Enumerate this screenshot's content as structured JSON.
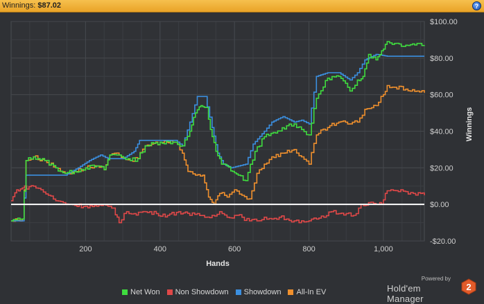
{
  "window": {
    "title_label": "Winnings:",
    "title_value": "$87.02",
    "help_icon": "question-icon"
  },
  "branding": {
    "powered_by": "Powered by",
    "name": "Hold'em Manager",
    "logo_number": "2"
  },
  "colors": {
    "background": "#2f3135",
    "grid": "#45484d",
    "zero_line": "#ffffff",
    "net_won": "#3fdc3f",
    "non_showdown": "#e04848",
    "showdown": "#3b8fe0",
    "all_in_ev": "#f0902d"
  },
  "chart_data": {
    "type": "line",
    "title": "",
    "xlabel": "Hands",
    "ylabel": "Winnings",
    "xlim": [
      0,
      1110
    ],
    "ylim": [
      -20,
      100
    ],
    "x_ticks": [
      200,
      400,
      600,
      800,
      1000
    ],
    "x_tick_labels": [
      "200",
      "400",
      "600",
      "800",
      "1,000"
    ],
    "y_ticks": [
      -20,
      0,
      20,
      40,
      60,
      80,
      100
    ],
    "y_tick_labels": [
      "-$20.00",
      "$0.00",
      "$20.00",
      "$40.00",
      "$60.00",
      "$80.00",
      "$100.00"
    ],
    "grid": true,
    "legend_position": "bottom",
    "series": [
      {
        "name": "Net Won",
        "points": [
          [
            0,
            -9
          ],
          [
            30,
            -8
          ],
          [
            40,
            24
          ],
          [
            60,
            26
          ],
          [
            90,
            24
          ],
          [
            120,
            20
          ],
          [
            145,
            17
          ],
          [
            170,
            18
          ],
          [
            200,
            20
          ],
          [
            230,
            21
          ],
          [
            250,
            19
          ],
          [
            265,
            27
          ],
          [
            290,
            27
          ],
          [
            320,
            24
          ],
          [
            340,
            25
          ],
          [
            360,
            32
          ],
          [
            400,
            34
          ],
          [
            440,
            34
          ],
          [
            460,
            32
          ],
          [
            480,
            40
          ],
          [
            495,
            50
          ],
          [
            510,
            54
          ],
          [
            525,
            53
          ],
          [
            535,
            41
          ],
          [
            550,
            29
          ],
          [
            565,
            22
          ],
          [
            580,
            21
          ],
          [
            595,
            18
          ],
          [
            610,
            16
          ],
          [
            630,
            13
          ],
          [
            655,
            29
          ],
          [
            680,
            37
          ],
          [
            710,
            39
          ],
          [
            740,
            43
          ],
          [
            760,
            44
          ],
          [
            780,
            41
          ],
          [
            800,
            38
          ],
          [
            820,
            58
          ],
          [
            850,
            69
          ],
          [
            880,
            70
          ],
          [
            910,
            62
          ],
          [
            930,
            68
          ],
          [
            945,
            70
          ],
          [
            960,
            82
          ],
          [
            980,
            79
          ],
          [
            995,
            84
          ],
          [
            1010,
            89
          ],
          [
            1030,
            88
          ],
          [
            1060,
            87
          ],
          [
            1090,
            88
          ],
          [
            1110,
            87.02
          ]
        ]
      },
      {
        "name": "Non Showdown",
        "points": [
          [
            0,
            2
          ],
          [
            15,
            8
          ],
          [
            30,
            9
          ],
          [
            60,
            10
          ],
          [
            80,
            8
          ],
          [
            100,
            5
          ],
          [
            120,
            2
          ],
          [
            140,
            1
          ],
          [
            160,
            0
          ],
          [
            200,
            -1
          ],
          [
            230,
            -1
          ],
          [
            260,
            -1
          ],
          [
            275,
            -2
          ],
          [
            290,
            -10
          ],
          [
            310,
            -4
          ],
          [
            330,
            -5
          ],
          [
            360,
            -4
          ],
          [
            390,
            -5
          ],
          [
            420,
            -6
          ],
          [
            450,
            -4
          ],
          [
            480,
            -6
          ],
          [
            500,
            -5
          ],
          [
            520,
            -7
          ],
          [
            540,
            -6
          ],
          [
            560,
            -4
          ],
          [
            580,
            -7
          ],
          [
            600,
            -6
          ],
          [
            620,
            -7
          ],
          [
            640,
            -9
          ],
          [
            660,
            -9
          ],
          [
            680,
            -7
          ],
          [
            700,
            -8
          ],
          [
            720,
            -7
          ],
          [
            740,
            -8
          ],
          [
            760,
            -9
          ],
          [
            780,
            -9
          ],
          [
            800,
            -9
          ],
          [
            820,
            -8
          ],
          [
            840,
            -7
          ],
          [
            860,
            -4
          ],
          [
            880,
            -5
          ],
          [
            900,
            -5
          ],
          [
            920,
            -6
          ],
          [
            940,
            0
          ],
          [
            960,
            1
          ],
          [
            980,
            0
          ],
          [
            995,
            0
          ],
          [
            1005,
            6
          ],
          [
            1020,
            8
          ],
          [
            1040,
            7
          ],
          [
            1060,
            7
          ],
          [
            1080,
            6
          ],
          [
            1100,
            6
          ],
          [
            1110,
            5
          ]
        ]
      },
      {
        "name": "Showdown",
        "points": [
          [
            0,
            -9
          ],
          [
            30,
            -9
          ],
          [
            40,
            16
          ],
          [
            80,
            16
          ],
          [
            120,
            16
          ],
          [
            145,
            16
          ],
          [
            180,
            20
          ],
          [
            210,
            24
          ],
          [
            240,
            27
          ],
          [
            260,
            25
          ],
          [
            280,
            25
          ],
          [
            300,
            25
          ],
          [
            330,
            29
          ],
          [
            345,
            35
          ],
          [
            375,
            35
          ],
          [
            405,
            35
          ],
          [
            440,
            35
          ],
          [
            460,
            32
          ],
          [
            480,
            45
          ],
          [
            500,
            59
          ],
          [
            520,
            59
          ],
          [
            540,
            42
          ],
          [
            555,
            28
          ],
          [
            570,
            22
          ],
          [
            590,
            20
          ],
          [
            610,
            21
          ],
          [
            630,
            22
          ],
          [
            650,
            33
          ],
          [
            680,
            40
          ],
          [
            700,
            45
          ],
          [
            730,
            48
          ],
          [
            760,
            45
          ],
          [
            780,
            46
          ],
          [
            800,
            44
          ],
          [
            820,
            70
          ],
          [
            850,
            72
          ],
          [
            880,
            72
          ],
          [
            910,
            68
          ],
          [
            930,
            72
          ],
          [
            950,
            79
          ],
          [
            980,
            82
          ],
          [
            1010,
            81
          ],
          [
            1040,
            81
          ],
          [
            1080,
            81
          ],
          [
            1110,
            81
          ]
        ]
      },
      {
        "name": "All-In EV",
        "points": [
          [
            0,
            -9
          ],
          [
            30,
            -8
          ],
          [
            40,
            24
          ],
          [
            60,
            26
          ],
          [
            90,
            24
          ],
          [
            120,
            20
          ],
          [
            145,
            17
          ],
          [
            170,
            18
          ],
          [
            200,
            20
          ],
          [
            230,
            21
          ],
          [
            250,
            19
          ],
          [
            265,
            27
          ],
          [
            290,
            27
          ],
          [
            320,
            24
          ],
          [
            340,
            25
          ],
          [
            360,
            32
          ],
          [
            400,
            34
          ],
          [
            440,
            34
          ],
          [
            460,
            28
          ],
          [
            475,
            18
          ],
          [
            495,
            16
          ],
          [
            515,
            16
          ],
          [
            530,
            4
          ],
          [
            545,
            0
          ],
          [
            560,
            6
          ],
          [
            580,
            4
          ],
          [
            600,
            8
          ],
          [
            620,
            5
          ],
          [
            640,
            3
          ],
          [
            660,
            17
          ],
          [
            680,
            22
          ],
          [
            700,
            26
          ],
          [
            730,
            28
          ],
          [
            760,
            30
          ],
          [
            780,
            26
          ],
          [
            800,
            22
          ],
          [
            820,
            38
          ],
          [
            850,
            42
          ],
          [
            880,
            45
          ],
          [
            910,
            44
          ],
          [
            930,
            45
          ],
          [
            950,
            52
          ],
          [
            980,
            54
          ],
          [
            1000,
            60
          ],
          [
            1010,
            65
          ],
          [
            1030,
            64
          ],
          [
            1060,
            63
          ],
          [
            1090,
            62
          ],
          [
            1110,
            61
          ]
        ]
      }
    ]
  }
}
